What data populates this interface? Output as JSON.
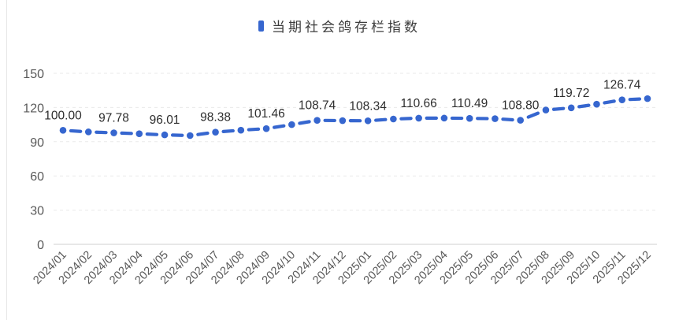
{
  "legend": {
    "label": "当期社会鸽存栏指数",
    "marker_color": "#3666cf"
  },
  "chart_data": {
    "type": "line",
    "title": "",
    "legend_position": "top-center",
    "grid": "horizontal-dashed",
    "ylim": [
      0,
      150
    ],
    "yticks": [
      0,
      30,
      60,
      90,
      120,
      150
    ],
    "x": [
      "2024/01",
      "2024/02",
      "2024/03",
      "2024/04",
      "2024/05",
      "2024/06",
      "2024/07",
      "2024/08",
      "2024/09",
      "2024/10",
      "2024/11",
      "2024/12",
      "2025/01",
      "2025/02",
      "2025/03",
      "2025/04",
      "2025/05",
      "2025/06",
      "2025/07",
      "2025/08",
      "2025/09",
      "2025/10",
      "2025/11",
      "2025/12"
    ],
    "series": [
      {
        "name": "当期社会鸽存栏指数",
        "color": "#3666cf",
        "line_style": "dashed",
        "marker": "circle",
        "values": [
          100.0,
          98.6,
          97.78,
          97.0,
          96.01,
          95.4,
          98.38,
          100.1,
          101.46,
          105.0,
          108.74,
          108.5,
          108.34,
          109.9,
          110.66,
          110.7,
          110.49,
          110.2,
          108.8,
          117.8,
          119.72,
          122.9,
          126.74,
          127.8
        ],
        "point_labels": [
          "100.00",
          null,
          "97.78",
          null,
          "96.01",
          null,
          "98.38",
          null,
          "101.46",
          null,
          "108.74",
          null,
          "108.34",
          null,
          "110.66",
          null,
          "110.49",
          null,
          "108.80",
          null,
          "119.72",
          null,
          "126.74",
          null
        ]
      }
    ],
    "colors": {
      "grid_line": "#eaeaea",
      "axis_line": "#cfcfcf",
      "tick_text": "#595959",
      "data_label_text": "#2e2e2e"
    }
  }
}
